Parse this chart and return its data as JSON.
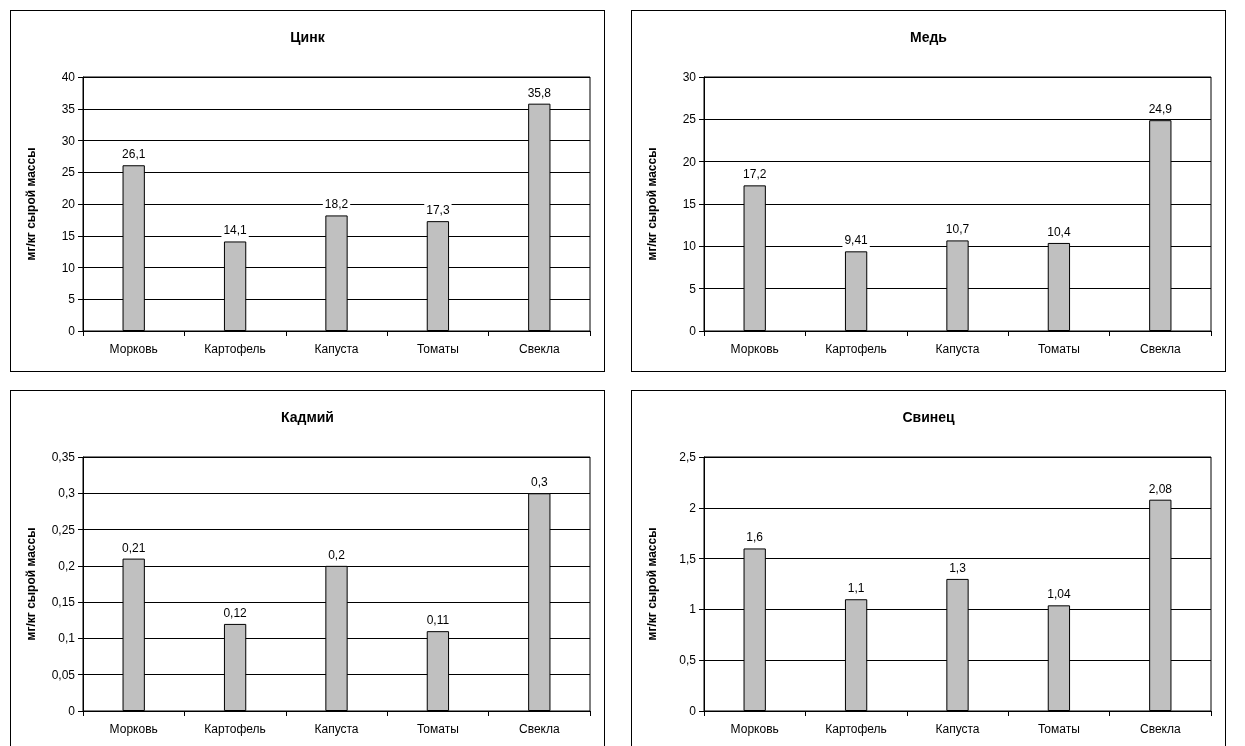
{
  "chart_data": [
    {
      "type": "bar",
      "title": "Цинк",
      "ylabel": "мг/кг сырой массы",
      "categories": [
        "Морковь",
        "Картофель",
        "Капуста",
        "Томаты",
        "Свекла"
      ],
      "values": [
        26.1,
        14.1,
        18.2,
        17.3,
        35.8
      ],
      "value_labels": [
        "26,1",
        "14,1",
        "18,2",
        "17,3",
        "35,8"
      ],
      "color": "#c0c0c0",
      "ylim": [
        0,
        40
      ],
      "yticks": [
        0,
        5,
        10,
        15,
        20,
        25,
        30,
        35,
        40
      ],
      "grid": "y"
    },
    {
      "type": "bar",
      "title": "Медь",
      "ylabel": "мг/кг сырой массы",
      "categories": [
        "Морковь",
        "Картофель",
        "Капуста",
        "Томаты",
        "Свекла"
      ],
      "values": [
        17.2,
        9.41,
        10.7,
        10.4,
        24.9
      ],
      "value_labels": [
        "17,2",
        "9,41",
        "10,7",
        "10,4",
        "24,9"
      ],
      "color": "#c0c0c0",
      "ylim": [
        0,
        30
      ],
      "yticks": [
        0,
        5,
        10,
        15,
        20,
        25,
        30
      ],
      "grid": "y"
    },
    {
      "type": "bar",
      "title": "Кадмий",
      "ylabel": "мг/кг сырой массы",
      "categories": [
        "Морковь",
        "Картофель",
        "Капуста",
        "Томаты",
        "Свекла"
      ],
      "values": [
        0.21,
        0.12,
        0.2,
        0.11,
        0.3
      ],
      "value_labels": [
        "0,21",
        "0,12",
        "0,2",
        "0,11",
        "0,3"
      ],
      "color": "#c0c0c0",
      "ylim": [
        0,
        0.35
      ],
      "yticks": [
        0,
        {
          "value": 0.05,
          "label": "0,05"
        },
        {
          "value": 0.1,
          "label": "0,1"
        },
        {
          "value": 0.15,
          "label": "0,15"
        },
        {
          "value": 0.2,
          "label": "0,2"
        },
        {
          "value": 0.25,
          "label": "0,25"
        },
        {
          "value": 0.3,
          "label": "0,3"
        },
        {
          "value": 0.35,
          "label": "0,35"
        }
      ],
      "grid": "y"
    },
    {
      "type": "bar",
      "title": "Свинец",
      "ylabel": "мг/кг сырой массы",
      "categories": [
        "Морковь",
        "Картофель",
        "Капуста",
        "Томаты",
        "Свекла"
      ],
      "values": [
        1.6,
        1.1,
        1.3,
        1.04,
        2.08
      ],
      "value_labels": [
        "1,6",
        "1,1",
        "1,3",
        "1,04",
        "2,08"
      ],
      "color": "#c0c0c0",
      "ylim": [
        0,
        2.5
      ],
      "yticks": [
        0,
        {
          "value": 0.5,
          "label": "0,5"
        },
        1,
        {
          "value": 1.5,
          "label": "1,5"
        },
        2,
        {
          "value": 2.5,
          "label": "2,5"
        }
      ],
      "grid": "y"
    }
  ]
}
